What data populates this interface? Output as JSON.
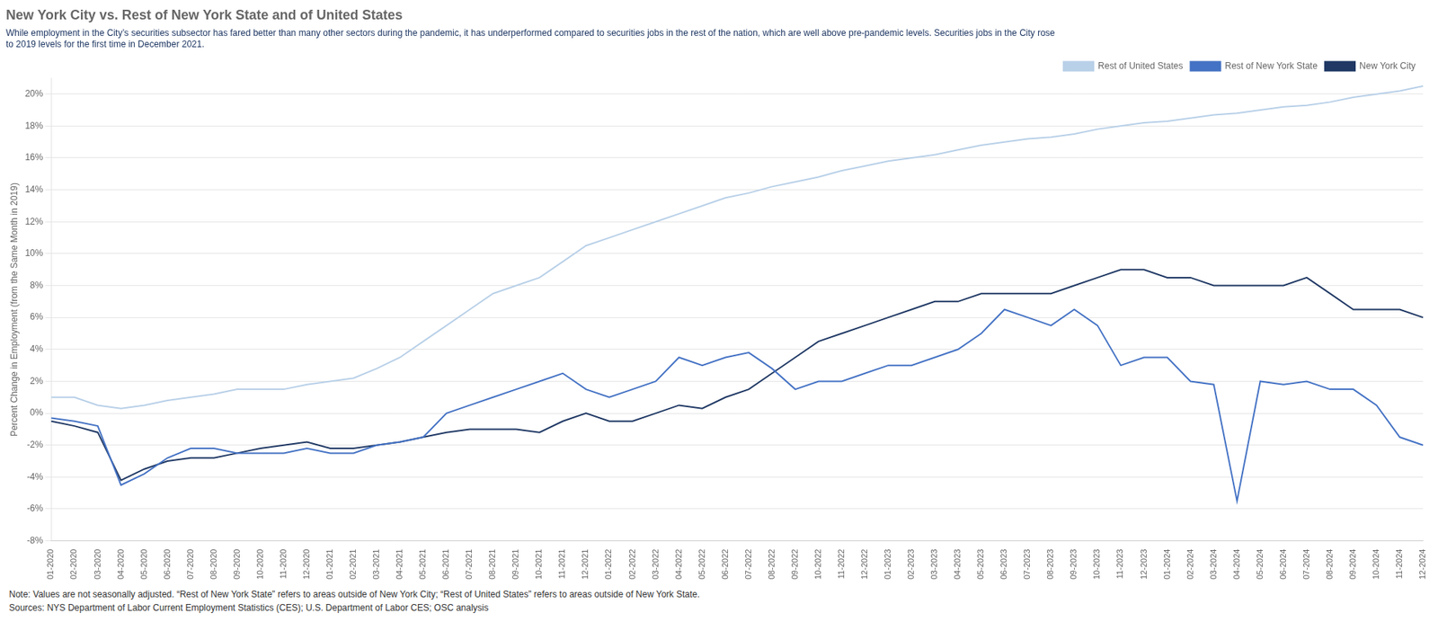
{
  "chart_data": {
    "type": "line",
    "title": "New York City vs. Rest of New York State and of United States",
    "subtitle": [
      "While employment in the City’s securities subsector has fared better than many other sectors during the pandemic, it has underperformed compared to securities jobs in the rest of the nation, which are well above pre-pandemic levels. Securities jobs in the City rose",
      "to 2019 levels for the first time in December 2021."
    ],
    "ylabel": "Percent Change in Employment (from the Same Month in 2019)",
    "annotations": [
      "Note: Values are not seasonally adjusted. “Rest of New York State” refers to areas outside of New York City; “Rest of United States” refers to areas outside of New York State.",
      "Sources: NYS Department of Labor Current Employment Statistics (CES); U.S. Department of Labor CES; OSC analysis"
    ],
    "categories": [
      "01-2020",
      "02-2020",
      "03-2020",
      "04-2020",
      "05-2020",
      "06-2020",
      "07-2020",
      "08-2020",
      "09-2020",
      "10-2020",
      "11-2020",
      "12-2020",
      "01-2021",
      "02-2021",
      "03-2021",
      "04-2021",
      "05-2021",
      "06-2021",
      "07-2021",
      "08-2021",
      "09-2021",
      "10-2021",
      "11-2021",
      "12-2021",
      "01-2022",
      "02-2022",
      "03-2022",
      "04-2022",
      "05-2022",
      "06-2022",
      "07-2022",
      "08-2022",
      "09-2022",
      "10-2022",
      "11-2022",
      "12-2022",
      "01-2023",
      "02-2023",
      "03-2023",
      "04-2023",
      "05-2023",
      "06-2023",
      "07-2023",
      "08-2023",
      "09-2023",
      "10-2023",
      "11-2023",
      "12-2023",
      "01-2024",
      "02-2024",
      "03-2024",
      "04-2024",
      "05-2024",
      "06-2024",
      "07-2024",
      "08-2024",
      "09-2024",
      "10-2024",
      "11-2024",
      "12-2024"
    ],
    "series": [
      {
        "name": "Rest of United States",
        "color": "#b8d0e8",
        "values": [
          1.0,
          1.0,
          0.5,
          0.3,
          0.5,
          0.8,
          1.0,
          1.2,
          1.5,
          1.5,
          1.5,
          1.8,
          2.0,
          2.2,
          2.8,
          3.5,
          4.5,
          5.5,
          6.5,
          7.5,
          8.0,
          8.5,
          9.5,
          10.5,
          11.0,
          11.5,
          12.0,
          12.5,
          13.0,
          13.5,
          13.8,
          14.2,
          14.5,
          14.8,
          15.2,
          15.5,
          15.8,
          16.0,
          16.2,
          16.5,
          16.8,
          17.0,
          17.2,
          17.3,
          17.5,
          17.8,
          18.0,
          18.2,
          18.3,
          18.5,
          18.7,
          18.8,
          19.0,
          19.2,
          19.3,
          19.5,
          19.8,
          20.0,
          20.2,
          20.5
        ]
      },
      {
        "name": "Rest of New York State",
        "color": "#4472c4",
        "values": [
          -0.3,
          -0.5,
          -0.8,
          -4.5,
          -3.8,
          -2.8,
          -2.2,
          -2.2,
          -2.5,
          -2.5,
          -2.5,
          -2.2,
          -2.5,
          -2.5,
          -2.0,
          -1.8,
          -1.5,
          0.0,
          0.5,
          1.0,
          1.5,
          2.0,
          2.5,
          1.5,
          1.0,
          1.5,
          2.0,
          3.5,
          3.0,
          3.5,
          3.8,
          2.8,
          1.5,
          2.0,
          2.0,
          2.5,
          3.0,
          3.0,
          3.5,
          4.0,
          5.0,
          6.5,
          6.0,
          5.5,
          6.5,
          5.5,
          3.0,
          3.5,
          3.5,
          2.0,
          1.8,
          -5.5,
          2.0,
          1.8,
          2.0,
          1.5,
          1.5,
          0.5,
          -1.5,
          -2.0
        ]
      },
      {
        "name": "New York City",
        "color": "#1f3864",
        "values": [
          -0.5,
          -0.8,
          -1.2,
          -4.2,
          -3.5,
          -3.0,
          -2.8,
          -2.8,
          -2.5,
          -2.2,
          -2.0,
          -1.8,
          -2.2,
          -2.2,
          -2.0,
          -1.8,
          -1.5,
          -1.2,
          -1.0,
          -1.0,
          -1.0,
          -1.2,
          -0.5,
          0.0,
          -0.5,
          -0.5,
          0.0,
          0.5,
          0.3,
          1.0,
          1.5,
          2.5,
          3.5,
          4.5,
          5.0,
          5.5,
          6.0,
          6.5,
          7.0,
          7.0,
          7.5,
          7.5,
          7.5,
          7.5,
          8.0,
          8.5,
          9.0,
          9.0,
          8.5,
          8.5,
          8.0,
          8.0,
          8.0,
          8.0,
          8.5,
          7.5,
          6.5,
          6.5,
          6.5,
          6.0
        ]
      }
    ],
    "ylim": [
      -8,
      21
    ],
    "yticks": [
      {
        "value": -8,
        "label": "-8%"
      },
      {
        "value": -6,
        "label": "-6%"
      },
      {
        "value": -4,
        "label": "-4%"
      },
      {
        "value": -2,
        "label": "-2%"
      },
      {
        "value": 0,
        "label": "0%"
      },
      {
        "value": 2,
        "label": "2%"
      },
      {
        "value": 4,
        "label": "4%"
      },
      {
        "value": 6,
        "label": "6%"
      },
      {
        "value": 8,
        "label": "8%"
      },
      {
        "value": 10,
        "label": "10%"
      },
      {
        "value": 12,
        "label": "12%"
      },
      {
        "value": 14,
        "label": "14%"
      },
      {
        "value": 16,
        "label": "16%"
      },
      {
        "value": 18,
        "label": "18%"
      },
      {
        "value": 20,
        "label": "20%"
      }
    ],
    "grid": true,
    "legend": "upper right"
  }
}
